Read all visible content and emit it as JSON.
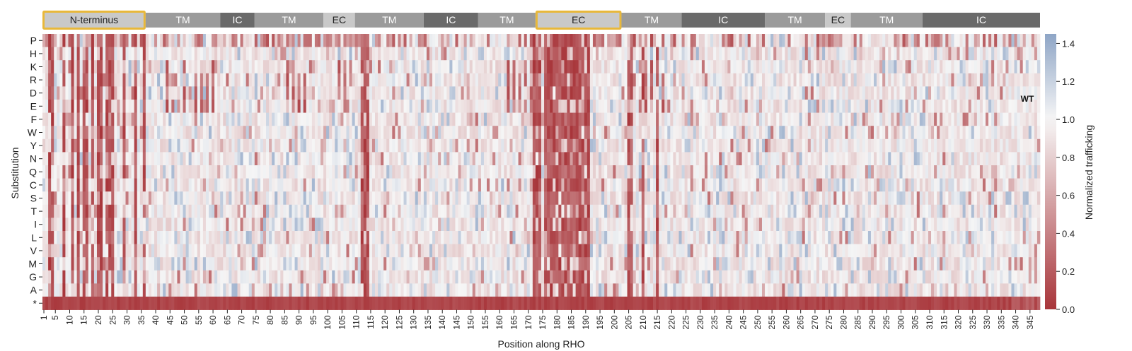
{
  "chart_data": {
    "type": "heatmap",
    "xlabel": "Position along RHO",
    "ylabel": "Substitution",
    "x_range": [
      1,
      348
    ],
    "x_tick_labels": [
      1,
      5,
      10,
      15,
      20,
      25,
      30,
      35,
      40,
      45,
      50,
      55,
      60,
      65,
      70,
      75,
      80,
      85,
      90,
      95,
      100,
      105,
      110,
      115,
      120,
      125,
      130,
      135,
      140,
      145,
      150,
      155,
      160,
      165,
      170,
      175,
      180,
      185,
      190,
      195,
      200,
      205,
      210,
      215,
      220,
      225,
      230,
      235,
      240,
      245,
      250,
      255,
      260,
      265,
      270,
      275,
      280,
      285,
      290,
      295,
      300,
      305,
      310,
      315,
      320,
      325,
      330,
      335,
      340,
      345
    ],
    "y_categories": [
      "P",
      "H",
      "K",
      "R",
      "D",
      "E",
      "F",
      "W",
      "Y",
      "N",
      "Q",
      "C",
      "S",
      "T",
      "I",
      "L",
      "V",
      "M",
      "G",
      "A",
      "*"
    ],
    "colorbar": {
      "label": "Normalized trafficking",
      "range": [
        0.0,
        1.45
      ],
      "ticks": [
        "0.0",
        "0.2",
        "0.4",
        "0.6",
        "0.8",
        "1.0",
        "1.2",
        "1.4"
      ],
      "low_color": "#a8353a",
      "mid_color": "#f6f6f6",
      "high_color": "#8ea5c6"
    },
    "annotation": "WT",
    "regions": [
      {
        "label": "N-terminus",
        "start": 1,
        "end": 36,
        "highlight": true
      },
      {
        "label": "TM",
        "start": 37,
        "end": 62
      },
      {
        "label": "IC",
        "start": 63,
        "end": 74
      },
      {
        "label": "TM",
        "start": 75,
        "end": 98
      },
      {
        "label": "EC",
        "start": 99,
        "end": 109
      },
      {
        "label": "TM",
        "start": 110,
        "end": 133
      },
      {
        "label": "IC",
        "start": 134,
        "end": 152
      },
      {
        "label": "TM",
        "start": 153,
        "end": 172
      },
      {
        "label": "EC",
        "start": 173,
        "end": 202,
        "highlight": true
      },
      {
        "label": "TM",
        "start": 203,
        "end": 223
      },
      {
        "label": "IC",
        "start": 224,
        "end": 252
      },
      {
        "label": "TM",
        "start": 253,
        "end": 273
      },
      {
        "label": "EC",
        "start": 274,
        "end": 282
      },
      {
        "label": "TM",
        "start": 283,
        "end": 307
      },
      {
        "label": "IC",
        "start": 308,
        "end": 348
      }
    ],
    "region_colors": {
      "TM": "#9b9b9b",
      "IC": "#6a6a6a",
      "EC": "#c9c9c9",
      "N-terminus": "#c9c9c9"
    },
    "highlight_color": "#e8b83a",
    "sensitive_positions": [
      3,
      4,
      8,
      11,
      13,
      15,
      16,
      18,
      20,
      21,
      23,
      24,
      25,
      29,
      33,
      36,
      112,
      113,
      114,
      172,
      173,
      174,
      176,
      177,
      178,
      179,
      180,
      181,
      182,
      183,
      184,
      185,
      186,
      187,
      188,
      189,
      190,
      191,
      205,
      206,
      210,
      215
    ],
    "charge_sensitive_positions": [
      44,
      46,
      48,
      50,
      52,
      54,
      56,
      58,
      60,
      86,
      88,
      90,
      92,
      104,
      106,
      108,
      163,
      165,
      167,
      169,
      171,
      207,
      209,
      211,
      213,
      217
    ]
  }
}
